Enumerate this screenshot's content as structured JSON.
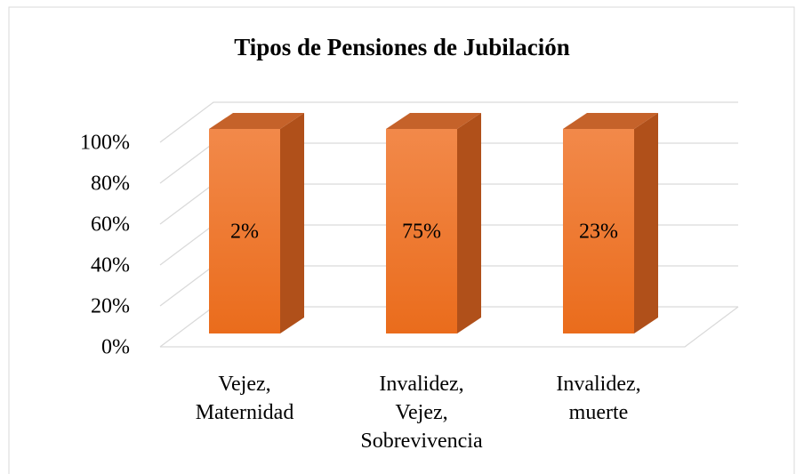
{
  "chart_data": {
    "type": "bar",
    "stacked_percent": true,
    "title": "Tipos de Pensiones de Jubilación",
    "categories": [
      "Vejez, Maternidad",
      "Invalidez, Vejez, Sobrevivencia",
      "Invalidez, muerte"
    ],
    "values": [
      2,
      75,
      23
    ],
    "value_labels": [
      "2%",
      "75%",
      "23%"
    ],
    "color": "#ee7a2e",
    "ylim": [
      0,
      100
    ],
    "yticks": [
      {
        "value": 0,
        "label": "0%"
      },
      {
        "value": 20,
        "label": "20%"
      },
      {
        "value": 40,
        "label": "40%"
      },
      {
        "value": 60,
        "label": "60%"
      },
      {
        "value": 80,
        "label": "80%"
      },
      {
        "value": 100,
        "label": "100%"
      }
    ],
    "grid": true
  }
}
